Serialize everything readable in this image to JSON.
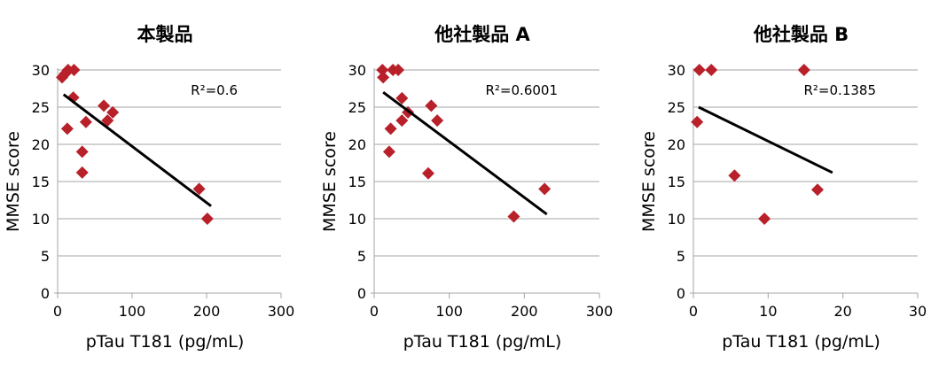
{
  "marker_color": "#B8202A",
  "trend_color": "#000000",
  "grid_color": "#A6A6A6",
  "chart_data": [
    {
      "type": "scatter",
      "title": "本製品",
      "xlabel": "pTau T181 (pg/mL)",
      "ylabel": "MMSE score",
      "xlim": [
        0,
        300
      ],
      "ylim": [
        0,
        30
      ],
      "xticks": [
        "0",
        "100",
        "200",
        "300"
      ],
      "yticks": [
        "0",
        "5",
        "10",
        "15",
        "20",
        "25",
        "30"
      ],
      "grid": "horizontal",
      "annotation": "R²=0.6",
      "points": [
        [
          6,
          29
        ],
        [
          10,
          29.5
        ],
        [
          14,
          30
        ],
        [
          22,
          30
        ],
        [
          21,
          26.3
        ],
        [
          62,
          25.2
        ],
        [
          74,
          24.3
        ],
        [
          67,
          23.2
        ],
        [
          38,
          23
        ],
        [
          13,
          22.1
        ],
        [
          33,
          19
        ],
        [
          33,
          16.2
        ],
        [
          190,
          14
        ],
        [
          201,
          10
        ]
      ],
      "trendline": [
        [
          8,
          26.7
        ],
        [
          206,
          11.7
        ]
      ]
    },
    {
      "type": "scatter",
      "title": "他社製品 A",
      "xlabel": "pTau T181 (pg/mL)",
      "ylabel": "MMSE score",
      "xlim": [
        0,
        300
      ],
      "ylim": [
        0,
        30
      ],
      "xticks": [
        "0",
        "100",
        "200",
        "300"
      ],
      "yticks": [
        "0",
        "5",
        "10",
        "15",
        "20",
        "25",
        "30"
      ],
      "grid": "horizontal",
      "annotation": "R²=0.6001",
      "points": [
        [
          11,
          30
        ],
        [
          12,
          29
        ],
        [
          25,
          30
        ],
        [
          32,
          30
        ],
        [
          37,
          26.2
        ],
        [
          45,
          24.3
        ],
        [
          37,
          23.2
        ],
        [
          76,
          25.2
        ],
        [
          84,
          23.2
        ],
        [
          22,
          22.1
        ],
        [
          20,
          19
        ],
        [
          72,
          16.1
        ],
        [
          227,
          14
        ],
        [
          186,
          10.3
        ]
      ],
      "trendline": [
        [
          12,
          27
        ],
        [
          230,
          10.6
        ]
      ]
    },
    {
      "type": "scatter",
      "title": "他社製品 B",
      "xlabel": "pTau T181 (pg/mL)",
      "ylabel": "MMSE score",
      "xlim": [
        0,
        30
      ],
      "ylim": [
        0,
        30
      ],
      "xticks": [
        "0",
        "10",
        "20",
        "30"
      ],
      "yticks": [
        "0",
        "5",
        "10",
        "15",
        "20",
        "25",
        "30"
      ],
      "grid": "horizontal",
      "annotation": "R²=0.1385",
      "points": [
        [
          0.8,
          30
        ],
        [
          2.4,
          30
        ],
        [
          14.8,
          30
        ],
        [
          0.5,
          23
        ],
        [
          5.5,
          15.8
        ],
        [
          16.6,
          13.9
        ],
        [
          9.5,
          10
        ]
      ],
      "trendline": [
        [
          0.7,
          25
        ],
        [
          18.6,
          16.2
        ]
      ]
    }
  ]
}
